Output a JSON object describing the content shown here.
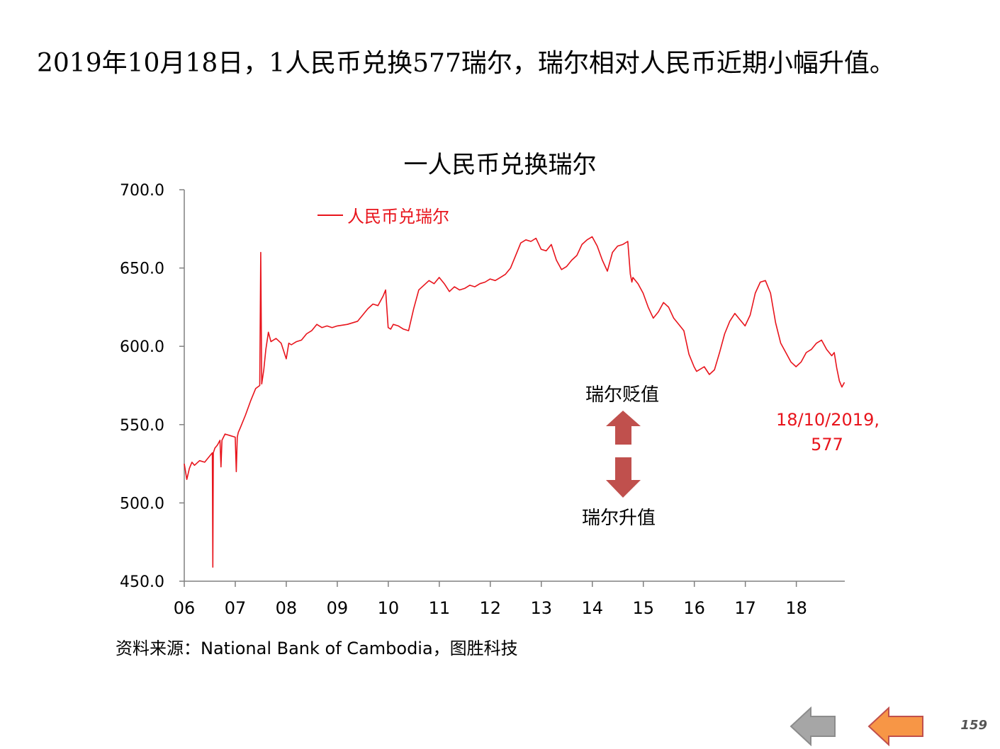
{
  "page": {
    "headline": "2019年10月18日，1人民币兑换577瑞尔，瑞尔相对人民币近期小幅升值。",
    "source": "资料来源：National Bank of Cambodia，图胜科技",
    "page_number": "159"
  },
  "nav": {
    "prev_icon": "left-arrow-icon",
    "next_icon": "left-arrow-icon",
    "prev_color": "#a6a6a6",
    "next_color": "#f79646"
  },
  "chart_data": {
    "type": "line",
    "title": "一人民币兑换瑞尔",
    "xlabel": "",
    "ylabel": "",
    "ylim": [
      450,
      700
    ],
    "y_ticks": [
      "700.0",
      "650.0",
      "600.0",
      "550.0",
      "500.0",
      "450.0"
    ],
    "x_ticks": [
      "06",
      "07",
      "08",
      "09",
      "10",
      "11",
      "12",
      "13",
      "14",
      "15",
      "16",
      "17",
      "18"
    ],
    "legend": {
      "position": "top-left",
      "label": "人民币兑瑞尔"
    },
    "grid": false,
    "line_color": "#e8141c",
    "series": [
      {
        "name": "人民币兑瑞尔",
        "x": [
          2006.0,
          2006.05,
          2006.1,
          2006.15,
          2006.2,
          2006.3,
          2006.4,
          2006.5,
          2006.55,
          2006.56,
          2006.57,
          2006.6,
          2006.65,
          2006.7,
          2006.72,
          2006.74,
          2006.8,
          2006.9,
          2007.0,
          2007.02,
          2007.04,
          2007.06,
          2007.1,
          2007.2,
          2007.3,
          2007.4,
          2007.48,
          2007.5,
          2007.52,
          2007.56,
          2007.6,
          2007.65,
          2007.7,
          2007.8,
          2007.9,
          2008.0,
          2008.05,
          2008.1,
          2008.2,
          2008.3,
          2008.4,
          2008.5,
          2008.6,
          2008.7,
          2008.8,
          2008.9,
          2009.0,
          2009.2,
          2009.4,
          2009.6,
          2009.7,
          2009.8,
          2009.9,
          2009.95,
          2010.0,
          2010.05,
          2010.1,
          2010.2,
          2010.3,
          2010.4,
          2010.5,
          2010.6,
          2010.7,
          2010.8,
          2010.9,
          2011.0,
          2011.1,
          2011.2,
          2011.3,
          2011.4,
          2011.5,
          2011.6,
          2011.7,
          2011.8,
          2011.9,
          2012.0,
          2012.1,
          2012.2,
          2012.3,
          2012.4,
          2012.5,
          2012.6,
          2012.7,
          2012.8,
          2012.9,
          2013.0,
          2013.1,
          2013.2,
          2013.3,
          2013.4,
          2013.5,
          2013.6,
          2013.7,
          2013.8,
          2013.9,
          2014.0,
          2014.1,
          2014.2,
          2014.3,
          2014.4,
          2014.5,
          2014.6,
          2014.7,
          2014.75,
          2014.78,
          2014.8,
          2014.9,
          2015.0,
          2015.1,
          2015.2,
          2015.3,
          2015.4,
          2015.5,
          2015.6,
          2015.7,
          2015.8,
          2015.9,
          2016.0,
          2016.05,
          2016.1,
          2016.2,
          2016.3,
          2016.4,
          2016.5,
          2016.6,
          2016.7,
          2016.8,
          2016.9,
          2017.0,
          2017.1,
          2017.2,
          2017.3,
          2017.4,
          2017.5,
          2017.6,
          2017.7,
          2017.8,
          2017.9,
          2018.0,
          2018.1,
          2018.2,
          2018.3,
          2018.4,
          2018.5,
          2018.6,
          2018.7,
          2018.75,
          2018.8,
          2018.85,
          2018.9,
          2018.95
        ],
        "values": [
          525,
          515,
          522,
          526,
          524,
          527,
          526,
          530,
          532,
          459,
          532,
          535,
          537,
          540,
          523,
          540,
          544,
          543,
          542,
          520,
          542,
          545,
          548,
          556,
          565,
          573,
          575,
          660,
          576,
          585,
          598,
          609,
          603,
          605,
          602,
          592,
          602,
          601,
          603,
          604,
          608,
          610,
          614,
          612,
          613,
          612,
          613,
          614,
          616,
          624,
          627,
          626,
          632,
          636,
          612,
          611,
          614,
          613,
          611,
          610,
          624,
          636,
          639,
          642,
          640,
          644,
          640,
          635,
          638,
          636,
          637,
          639,
          638,
          640,
          641,
          643,
          642,
          644,
          646,
          650,
          658,
          666,
          668,
          667,
          669,
          662,
          661,
          665,
          655,
          649,
          651,
          655,
          658,
          665,
          668,
          670,
          664,
          655,
          648,
          660,
          664,
          665,
          667,
          646,
          641,
          644,
          640,
          634,
          625,
          618,
          622,
          628,
          625,
          618,
          614,
          610,
          595,
          587,
          584,
          585,
          587,
          582,
          585,
          596,
          608,
          616,
          621,
          617,
          613,
          620,
          634,
          641,
          642,
          634,
          615,
          602,
          596,
          590,
          587,
          590,
          596,
          598,
          602,
          604,
          598,
          594,
          596,
          586,
          578,
          574,
          577
        ]
      }
    ],
    "annotations": {
      "depreciation_label": "瑞尔贬值",
      "appreciation_label": "瑞尔升值",
      "last_point_date": "18/10/2019,",
      "last_point_value": "577",
      "arrow_color": "#c0504d"
    }
  }
}
